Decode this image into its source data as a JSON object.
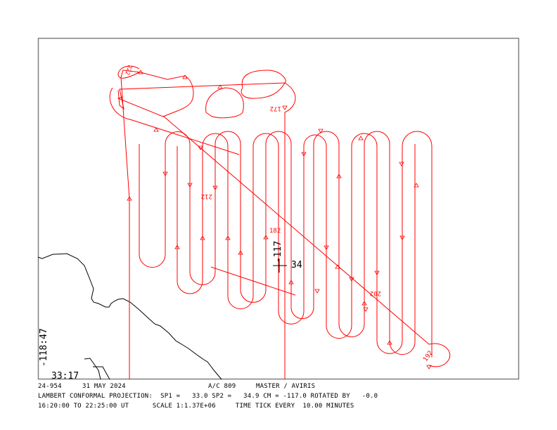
{
  "header": {
    "flight_id": "24-954",
    "date": "31 MAY 2024",
    "aircraft": "A/C 809",
    "instruments": "MASTER / AVIRIS"
  },
  "projection_line": "LAMBERT CONFORMAL PROJECTION:  SP1 =   33.0 SP2 =   34.9 CM = -117.0 ROTATED BY   -0.0",
  "time_line": "16:20:00 TO 22:25:00 UT      SCALE 1:1.37E+06     TIME TICK EVERY  10.00 MINUTES",
  "map": {
    "corner_lon": "-118:47",
    "corner_lat": "33:17",
    "grid_mark_lon": "-117",
    "grid_mark_lat": "34",
    "time_labels": [
      "222",
      "172",
      "212",
      "182",
      "202",
      "192"
    ],
    "track_color": "#ff0000",
    "coast_color": "#000000",
    "frame_color": "#808080"
  }
}
